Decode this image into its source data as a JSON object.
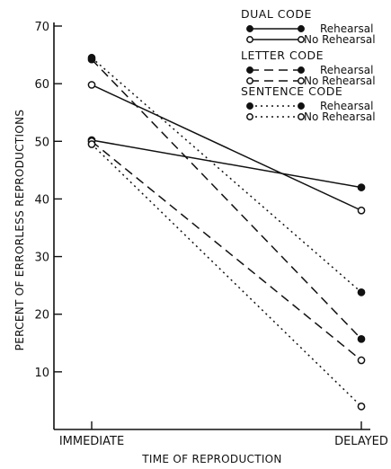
{
  "chart_data": {
    "type": "line",
    "title": "",
    "xlabel": "TIME OF REPRODUCTION",
    "ylabel": "PERCENT OF ERRORLESS REPRODUCTIONS",
    "categories": [
      "IMMEDIATE",
      "DELAYED"
    ],
    "ylim": [
      0,
      70
    ],
    "yticks": [
      10,
      20,
      30,
      40,
      50,
      60,
      70
    ],
    "grid": false,
    "legend_position": "top-right",
    "groups": [
      {
        "name": "DUAL CODE",
        "dash": "solid"
      },
      {
        "name": "LETTER CODE",
        "dash": "dashed"
      },
      {
        "name": "SENTENCE CODE",
        "dash": "dotted"
      }
    ],
    "series": [
      {
        "group": "DUAL CODE",
        "name": "Rehearsal",
        "marker": "filled",
        "dash": "solid",
        "values": [
          50.2,
          42
        ]
      },
      {
        "group": "DUAL CODE",
        "name": "No Rehearsal",
        "marker": "open",
        "dash": "solid",
        "values": [
          59.8,
          38
        ]
      },
      {
        "group": "LETTER CODE",
        "name": "Rehearsal",
        "marker": "filled",
        "dash": "dashed",
        "values": [
          64.2,
          15.7
        ]
      },
      {
        "group": "LETTER CODE",
        "name": "No Rehearsal",
        "marker": "open",
        "dash": "dashed",
        "values": [
          50,
          12
        ]
      },
      {
        "group": "SENTENCE CODE",
        "name": "Rehearsal",
        "marker": "filled",
        "dash": "dotted",
        "values": [
          64.5,
          23.8
        ]
      },
      {
        "group": "SENTENCE CODE",
        "name": "No Rehearsal",
        "marker": "open",
        "dash": "dotted",
        "values": [
          49.5,
          4
        ]
      }
    ]
  }
}
